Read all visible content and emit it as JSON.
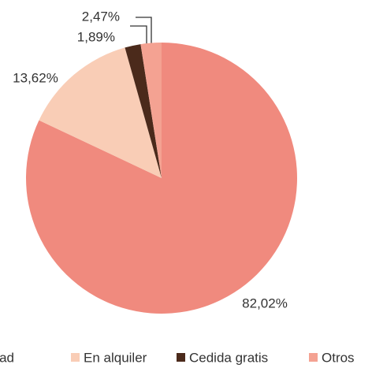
{
  "chart_data": {
    "type": "pie",
    "categories": [
      "En propiedad",
      "En alquiler",
      "Cedida gratis",
      "Otros"
    ],
    "values": [
      82.02,
      13.62,
      1.89,
      2.47
    ],
    "value_labels": [
      "82,02%",
      "13,62%",
      "1,89%",
      "2,47%"
    ],
    "colors": [
      "#f08a7e",
      "#f9cdb6",
      "#4b2a1b",
      "#f4a292"
    ],
    "legend": "bottom"
  }
}
